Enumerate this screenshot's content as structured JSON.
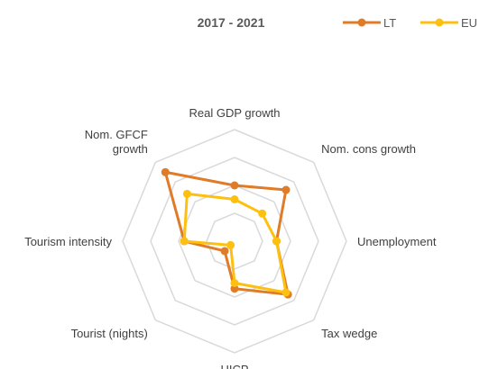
{
  "chart_data": {
    "type": "radar",
    "title": "2017 - 2021",
    "categories": [
      "Real GDP growth",
      "Nom. cons growth",
      "Unemployment",
      "Tax wedge",
      "HICP",
      "Tourist (nights)",
      "Tourism intensity",
      "Nom. GFCF growth"
    ],
    "category_lines": [
      [
        "Real GDP growth"
      ],
      [
        "Nom. cons growth"
      ],
      [
        "Unemployment"
      ],
      [
        "Tax wedge"
      ],
      [
        "HICP"
      ],
      [
        "Tourist (nights)"
      ],
      [
        "Tourism intensity"
      ],
      [
        "Nom. GFCF",
        "growth"
      ]
    ],
    "rlim": [
      0,
      4
    ],
    "grid_levels": 4,
    "grid": true,
    "legend_position": "top-right",
    "series": [
      {
        "name": "LT",
        "color": "#E07B28",
        "values": [
          2.0,
          2.6,
          1.5,
          2.7,
          1.7,
          0.5,
          1.8,
          3.5
        ]
      },
      {
        "name": "EU",
        "color": "#FDC010",
        "values": [
          1.5,
          1.4,
          1.5,
          2.6,
          1.5,
          0.2,
          1.8,
          2.4
        ]
      }
    ]
  }
}
